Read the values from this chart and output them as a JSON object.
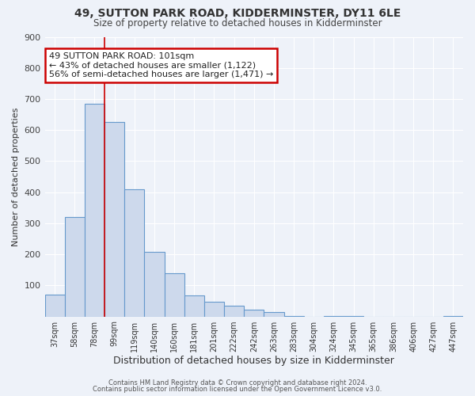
{
  "title": "49, SUTTON PARK ROAD, KIDDERMINSTER, DY11 6LE",
  "subtitle": "Size of property relative to detached houses in Kidderminster",
  "xlabel": "Distribution of detached houses by size in Kidderminster",
  "ylabel": "Number of detached properties",
  "bar_labels": [
    "37sqm",
    "58sqm",
    "78sqm",
    "99sqm",
    "119sqm",
    "140sqm",
    "160sqm",
    "181sqm",
    "201sqm",
    "222sqm",
    "242sqm",
    "263sqm",
    "283sqm",
    "304sqm",
    "324sqm",
    "345sqm",
    "365sqm",
    "386sqm",
    "406sqm",
    "427sqm",
    "447sqm"
  ],
  "bar_values": [
    70,
    320,
    685,
    625,
    410,
    208,
    138,
    68,
    48,
    35,
    22,
    13,
    2,
    0,
    2,
    2,
    0,
    0,
    0,
    0,
    2
  ],
  "bar_color": "#cdd9ec",
  "bar_edge_color": "#6699cc",
  "annotation_text": "49 SUTTON PARK ROAD: 101sqm\n← 43% of detached houses are smaller (1,122)\n56% of semi-detached houses are larger (1,471) →",
  "annotation_box_color": "#ffffff",
  "annotation_box_edge_color": "#cc0000",
  "vline_color": "#cc0000",
  "background_color": "#eef2f9",
  "grid_color": "#ffffff",
  "ylim": [
    0,
    900
  ],
  "yticks": [
    0,
    100,
    200,
    300,
    400,
    500,
    600,
    700,
    800,
    900
  ],
  "footer_line1": "Contains HM Land Registry data © Crown copyright and database right 2024.",
  "footer_line2": "Contains public sector information licensed under the Open Government Licence v3.0."
}
